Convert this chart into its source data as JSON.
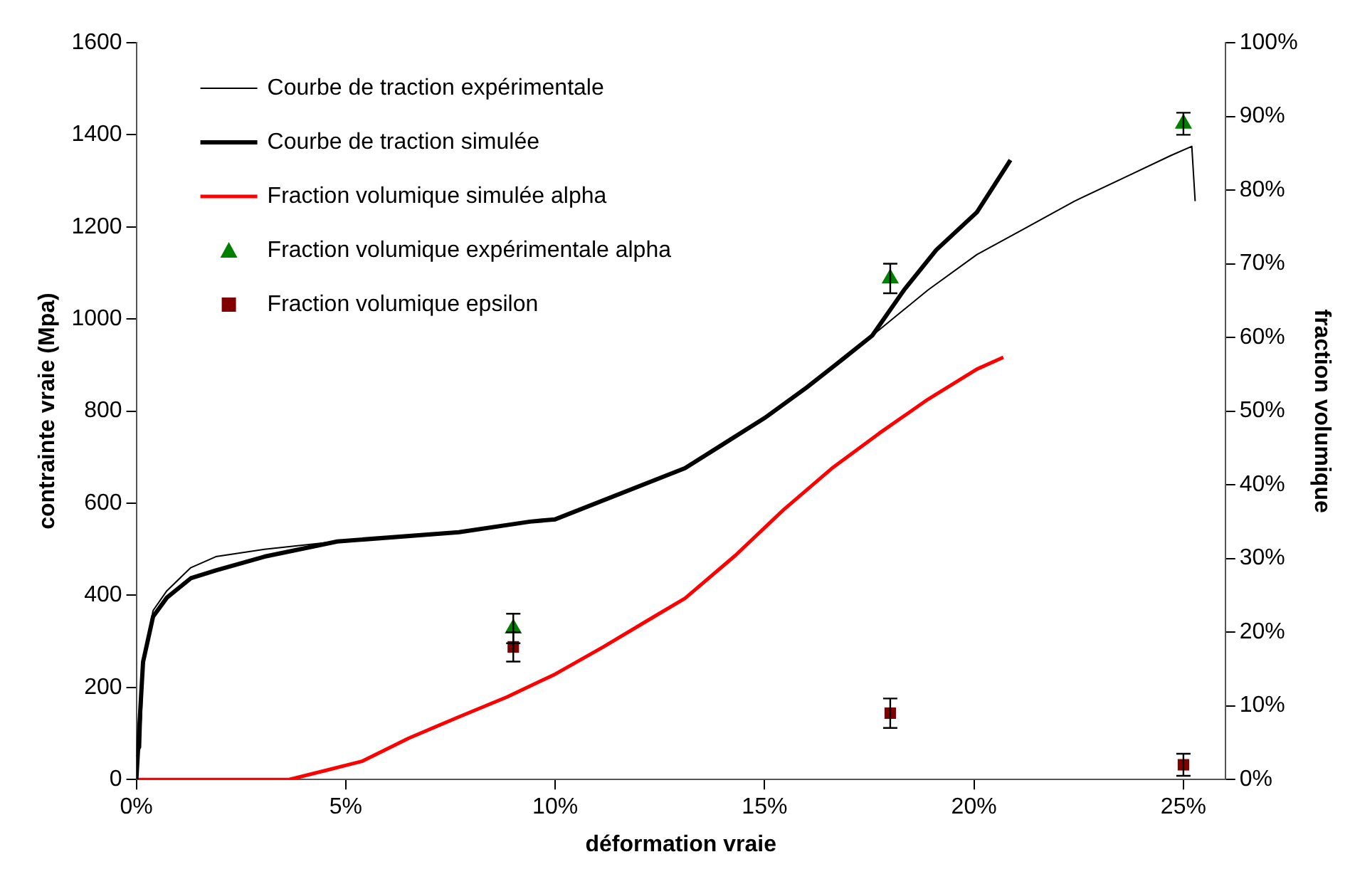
{
  "chart_data": {
    "type": "line",
    "xlabel": "déformation vraie",
    "ylabel": "contrainte vraie (Mpa)",
    "y2label": "fraction volumique",
    "xlim": [
      0,
      0.26
    ],
    "xticks": [
      {
        "value": 0,
        "label": "0%"
      },
      {
        "value": 0.05,
        "label": "5%"
      },
      {
        "value": 0.1,
        "label": "10%"
      },
      {
        "value": 0.15,
        "label": "15%"
      },
      {
        "value": 0.2,
        "label": "20%"
      },
      {
        "value": 0.25,
        "label": "25%"
      }
    ],
    "ylim": [
      0,
      1600
    ],
    "yticks": [
      0,
      200,
      400,
      600,
      800,
      1000,
      1200,
      1400,
      1600
    ],
    "y2lim": [
      0,
      1
    ],
    "y2ticks": [
      {
        "value": 0,
        "label": "0%"
      },
      {
        "value": 0.1,
        "label": "10%"
      },
      {
        "value": 0.2,
        "label": "20%"
      },
      {
        "value": 0.3,
        "label": "30%"
      },
      {
        "value": 0.4,
        "label": "40%"
      },
      {
        "value": 0.5,
        "label": "50%"
      },
      {
        "value": 0.6,
        "label": "60%"
      },
      {
        "value": 0.7,
        "label": "70%"
      },
      {
        "value": 0.8,
        "label": "80%"
      },
      {
        "value": 0.9,
        "label": "90%"
      },
      {
        "value": 1,
        "label": "100%"
      }
    ],
    "grid": false,
    "legend": "top left",
    "series": [
      {
        "name": "Courbe de traction expérimentale",
        "color": "#000000",
        "marker": "none",
        "x": [
          0,
          0.001,
          0.0016,
          0.004,
          0.0073,
          0.013,
          0.019,
          0.0306,
          0.048,
          0.077,
          0.094,
          0.1,
          0.131,
          0.15,
          0.16,
          0.168,
          0.1757,
          0.189,
          0.2007,
          0.212,
          0.224,
          0.2354,
          0.247,
          0.252,
          0.2528
        ],
        "values": [
          50,
          70,
          255,
          367,
          410,
          460,
          484,
          500,
          517,
          537,
          560,
          565,
          676,
          785,
          851,
          908,
          964,
          1063,
          1140,
          1196,
          1256,
          1305,
          1355,
          1375,
          1256
        ]
      },
      {
        "name": "Courbe de traction simulée",
        "color": "#000000",
        "marker": "none",
        "x": [
          0,
          0.0016,
          0.004,
          0.0073,
          0.013,
          0.019,
          0.0306,
          0.048,
          0.077,
          0.094,
          0.1,
          0.131,
          0.15,
          0.16,
          0.168,
          0.1757,
          0.1833,
          0.191,
          0.2007,
          0.2087
        ],
        "values": [
          0,
          255,
          354,
          395,
          437,
          454,
          484,
          517,
          537,
          560,
          565,
          676,
          785,
          851,
          908,
          964,
          1063,
          1150,
          1232,
          1345
        ]
      },
      {
        "name": "Fraction volumique simulée alpha",
        "axis": "y2",
        "color": "#ff0000",
        "marker": "none",
        "x": [
          0,
          0.0365,
          0.045,
          0.054,
          0.065,
          0.077,
          0.0885,
          0.1,
          0.1115,
          0.123,
          0.131,
          0.143,
          0.1545,
          0.166,
          0.1774,
          0.189,
          0.2007,
          0.207
        ],
        "values": [
          0,
          0,
          0.012,
          0.025,
          0.056,
          0.085,
          0.112,
          0.143,
          0.18,
          0.219,
          0.246,
          0.304,
          0.366,
          0.422,
          0.47,
          0.516,
          0.557,
          0.573
        ]
      },
      {
        "name": "Fraction volumique expérimentale alpha",
        "type": "scatter",
        "axis": "y2",
        "color": "#008000",
        "marker": "triangle",
        "x": [
          0.09,
          0.18,
          0.25
        ],
        "values": [
          0.205,
          0.68,
          0.89
        ],
        "errors": [
          0.02,
          0.02,
          0.015
        ]
      },
      {
        "name": "Fraction volumique epsilon",
        "type": "scatter",
        "axis": "y2",
        "color": "#800000",
        "marker": "square",
        "x": [
          0.09,
          0.18,
          0.25
        ],
        "values": [
          0.18,
          0.09,
          0.02
        ],
        "errors": [
          0.02,
          0.02,
          0.015
        ]
      }
    ]
  }
}
